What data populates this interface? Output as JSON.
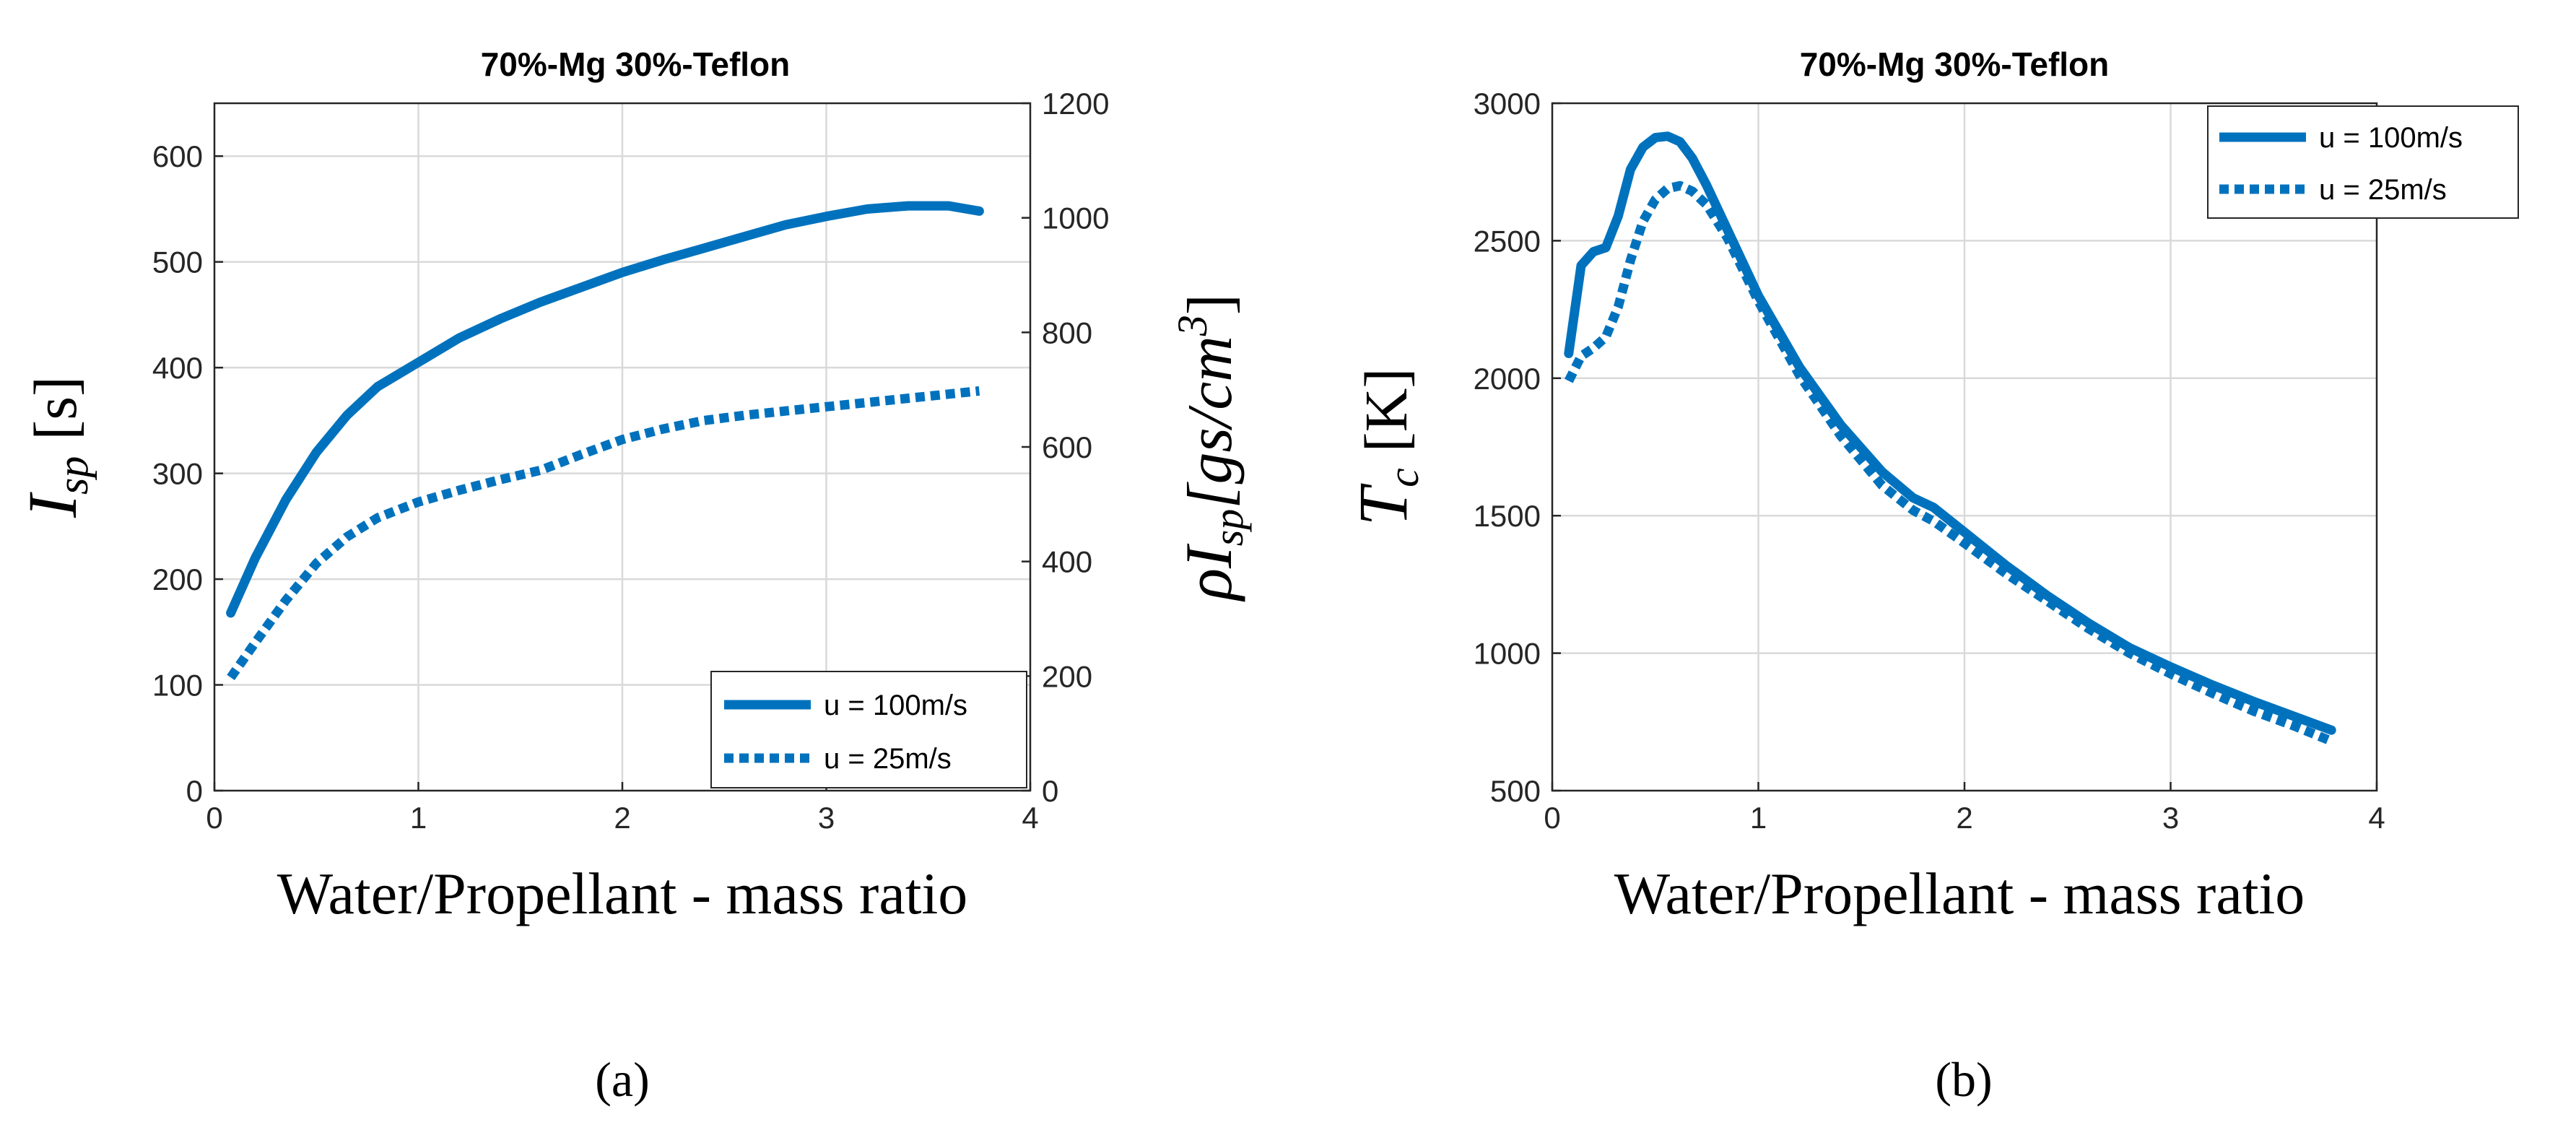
{
  "chart_data": [
    {
      "type": "line",
      "panel": "a",
      "title": "70%-Mg 30%-Teflon",
      "xlabel": "Water/Propellant - mass ratio",
      "ylabel": {
        "symbol": "I",
        "sub": "sp",
        "unit": "[s]"
      },
      "y2label": {
        "pre": "ρ",
        "symbol": "I",
        "sub": "sp",
        "unit": "[gs/cm",
        "sup": "3",
        "close": "]"
      },
      "xlim": [
        0,
        4
      ],
      "ylim": [
        0,
        650
      ],
      "y2lim": [
        0,
        1200
      ],
      "xticks": [
        "0",
        "1",
        "2",
        "3",
        "4"
      ],
      "yticks": [
        "0",
        "100",
        "200",
        "300",
        "400",
        "500",
        "600"
      ],
      "y2ticks": [
        "0",
        "200",
        "400",
        "600",
        "800",
        "1000",
        "1200"
      ],
      "grid": true,
      "legend_position": "bottom-right",
      "series": [
        {
          "name": "u = 100m/s",
          "style": "solid",
          "color": "#0072BD",
          "x": [
            0.08,
            0.2,
            0.35,
            0.5,
            0.65,
            0.8,
            1.0,
            1.2,
            1.4,
            1.6,
            1.8,
            2.0,
            2.2,
            2.4,
            2.6,
            2.8,
            3.0,
            3.2,
            3.4,
            3.6,
            3.75
          ],
          "y": [
            168,
            220,
            275,
            320,
            355,
            382,
            405,
            428,
            446,
            462,
            476,
            490,
            502,
            513,
            524,
            535,
            543,
            550,
            553,
            553,
            548
          ]
        },
        {
          "name": "u = 25m/s",
          "style": "dotted",
          "color": "#0072BD",
          "x": [
            0.08,
            0.2,
            0.35,
            0.5,
            0.65,
            0.8,
            1.0,
            1.2,
            1.4,
            1.6,
            1.8,
            2.0,
            2.2,
            2.4,
            2.6,
            2.8,
            3.0,
            3.2,
            3.4,
            3.6,
            3.75
          ],
          "y": [
            107,
            140,
            180,
            215,
            240,
            258,
            273,
            284,
            294,
            303,
            318,
            332,
            342,
            350,
            355,
            359,
            363,
            367,
            371,
            375,
            378
          ]
        }
      ]
    },
    {
      "type": "line",
      "panel": "b",
      "title": "70%-Mg 30%-Teflon",
      "xlabel": "Water/Propellant - mass ratio",
      "ylabel": {
        "symbol": "T",
        "sub": "c",
        "unit": "[K]"
      },
      "xlim": [
        0,
        4
      ],
      "ylim": [
        500,
        3000
      ],
      "xticks": [
        "0",
        "1",
        "2",
        "3",
        "4"
      ],
      "yticks": [
        "500",
        "1000",
        "1500",
        "2000",
        "2500",
        "3000"
      ],
      "grid": true,
      "legend_position": "top-right",
      "series": [
        {
          "name": "u = 100m/s",
          "style": "solid",
          "color": "#0072BD",
          "x": [
            0.08,
            0.14,
            0.2,
            0.26,
            0.32,
            0.38,
            0.44,
            0.5,
            0.56,
            0.62,
            0.68,
            0.75,
            0.85,
            1.0,
            1.2,
            1.4,
            1.6,
            1.75,
            1.85,
            2.0,
            2.2,
            2.4,
            2.6,
            2.8,
            3.0,
            3.2,
            3.4,
            3.6,
            3.78
          ],
          "y": [
            2090,
            2410,
            2460,
            2475,
            2590,
            2760,
            2840,
            2875,
            2880,
            2860,
            2800,
            2700,
            2540,
            2300,
            2040,
            1830,
            1660,
            1565,
            1530,
            1440,
            1320,
            1210,
            1110,
            1020,
            950,
            885,
            825,
            770,
            720
          ]
        },
        {
          "name": "u = 25m/s",
          "style": "dotted",
          "color": "#0072BD",
          "x": [
            0.08,
            0.14,
            0.2,
            0.26,
            0.32,
            0.38,
            0.44,
            0.5,
            0.56,
            0.62,
            0.68,
            0.75,
            0.85,
            1.0,
            1.2,
            1.4,
            1.6,
            1.75,
            1.85,
            2.0,
            2.2,
            2.4,
            2.6,
            2.8,
            3.0,
            3.2,
            3.4,
            3.6,
            3.78
          ],
          "y": [
            1990,
            2080,
            2110,
            2150,
            2260,
            2430,
            2570,
            2650,
            2690,
            2700,
            2680,
            2630,
            2510,
            2280,
            2010,
            1790,
            1610,
            1520,
            1480,
            1400,
            1290,
            1190,
            1090,
            1000,
            925,
            855,
            790,
            735,
            680
          ]
        }
      ]
    }
  ],
  "captions": [
    "(a)",
    "(b)"
  ]
}
